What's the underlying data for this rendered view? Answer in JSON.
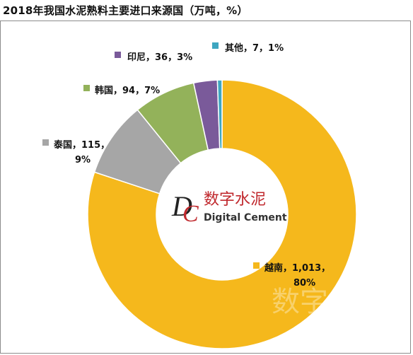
{
  "header": {
    "title": "2018年我国水泥熟料主要进口来源国（万吨，%）"
  },
  "watermark": {
    "logo_letters": "DC",
    "cn_text": "数字水泥",
    "en_text": "Digital Cement",
    "faint_text": "数字水泥"
  },
  "chart_data": {
    "type": "donut",
    "title": "2018年我国水泥熟料主要进口来源国（万吨，%）",
    "unit": "万吨",
    "series": [
      {
        "name": "越南",
        "value": 1013,
        "percent": 80,
        "color": "#f5b81c",
        "label_lines": [
          "越南，1,013，",
          "80%"
        ]
      },
      {
        "name": "泰国",
        "value": 115,
        "percent": 9,
        "color": "#a6a6a6",
        "label_lines": [
          "泰国，115，",
          "9%"
        ]
      },
      {
        "name": "韩国",
        "value": 94,
        "percent": 7,
        "color": "#93b25a",
        "label_lines": [
          "韩国，94，7%"
        ]
      },
      {
        "name": "印尼",
        "value": 36,
        "percent": 3,
        "color": "#7a5a9a",
        "label_lines": [
          "印尼，36，3%"
        ]
      },
      {
        "name": "其他",
        "value": 7,
        "percent": 1,
        "color": "#3ea6c0",
        "label_lines": [
          "其他，7，1%"
        ]
      }
    ]
  }
}
